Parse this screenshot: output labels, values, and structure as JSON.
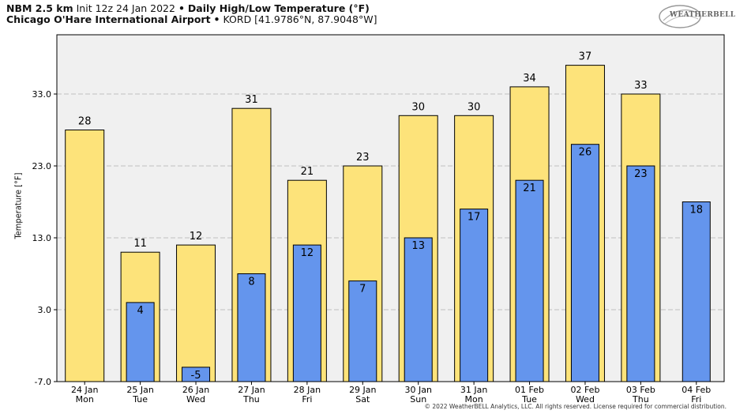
{
  "header": {
    "model": "NBM 2.5 km",
    "init": "Init 12z 24 Jan 2022",
    "sep": "•",
    "title": "Daily High/Low Temperature (°F)",
    "station": "Chicago O'Hare International Airport",
    "station_code": "KORD [41.9786°N, 87.9048°W]"
  },
  "logo": {
    "text": "WEATHERBELL",
    "icon": "weatherbell-swirl-logo"
  },
  "footer": {
    "copyright": "© 2022 WeatherBELL Analytics, LLC. All rights reserved. License required for commercial distribution."
  },
  "colors": {
    "high": "#fde37a",
    "low": "#6495ed",
    "plot_bg": "#f0f0f0",
    "grid": "#c0c0c0",
    "outline": "#000000"
  },
  "chart_data": {
    "type": "bar",
    "ylabel": "Temperature [°F]",
    "ylim": [
      -7,
      33
    ],
    "yticks": [
      "-7.0",
      "3.0",
      "13.0",
      "23.0",
      "33.0"
    ],
    "ytick_values": [
      -7,
      3,
      13,
      23,
      33
    ],
    "grid": true,
    "categories": [
      [
        "24 Jan",
        "Mon"
      ],
      [
        "25 Jan",
        "Tue"
      ],
      [
        "26 Jan",
        "Wed"
      ],
      [
        "27 Jan",
        "Thu"
      ],
      [
        "28 Jan",
        "Fri"
      ],
      [
        "29 Jan",
        "Sat"
      ],
      [
        "30 Jan",
        "Sun"
      ],
      [
        "31 Jan",
        "Mon"
      ],
      [
        "01 Feb",
        "Tue"
      ],
      [
        "02 Feb",
        "Wed"
      ],
      [
        "03 Feb",
        "Thu"
      ],
      [
        "04 Feb",
        "Fri"
      ]
    ],
    "series": [
      {
        "key": "high",
        "values": [
          28,
          11,
          12,
          31,
          21,
          23,
          30,
          30,
          34,
          37,
          33,
          null
        ]
      },
      {
        "key": "low",
        "values": [
          null,
          4,
          -5,
          8,
          12,
          7,
          13,
          17,
          21,
          26,
          23,
          18
        ]
      }
    ]
  }
}
